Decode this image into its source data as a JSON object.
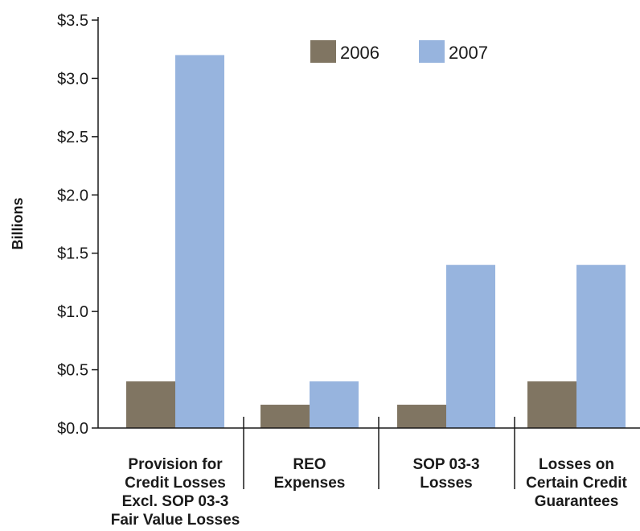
{
  "chart_data": {
    "type": "bar",
    "categories": [
      [
        "Provision for",
        "Credit Losses",
        "Excl. SOP 03-3",
        "Fair Value Losses"
      ],
      [
        "REO",
        "Expenses"
      ],
      [
        "SOP 03-3",
        "Losses"
      ],
      [
        "Losses on",
        "Certain Credit",
        "Guarantees"
      ]
    ],
    "series": [
      {
        "name": "2006",
        "values": [
          0.4,
          0.2,
          0.2,
          0.4
        ],
        "color": "#807562"
      },
      {
        "name": "2007",
        "values": [
          3.2,
          0.4,
          1.4,
          1.4
        ],
        "color": "#97b4de"
      }
    ],
    "ylabel": "Billions",
    "ylim": [
      0,
      3.5
    ],
    "yticks": [
      0.0,
      0.5,
      1.0,
      1.5,
      2.0,
      2.5,
      3.0,
      3.5
    ],
    "ytick_labels": [
      "$0.0",
      "$0.5",
      "$1.0",
      "$1.5",
      "$2.0",
      "$2.5",
      "$3.0",
      "$3.5"
    ],
    "legend_position": "top-center",
    "grid": false
  }
}
